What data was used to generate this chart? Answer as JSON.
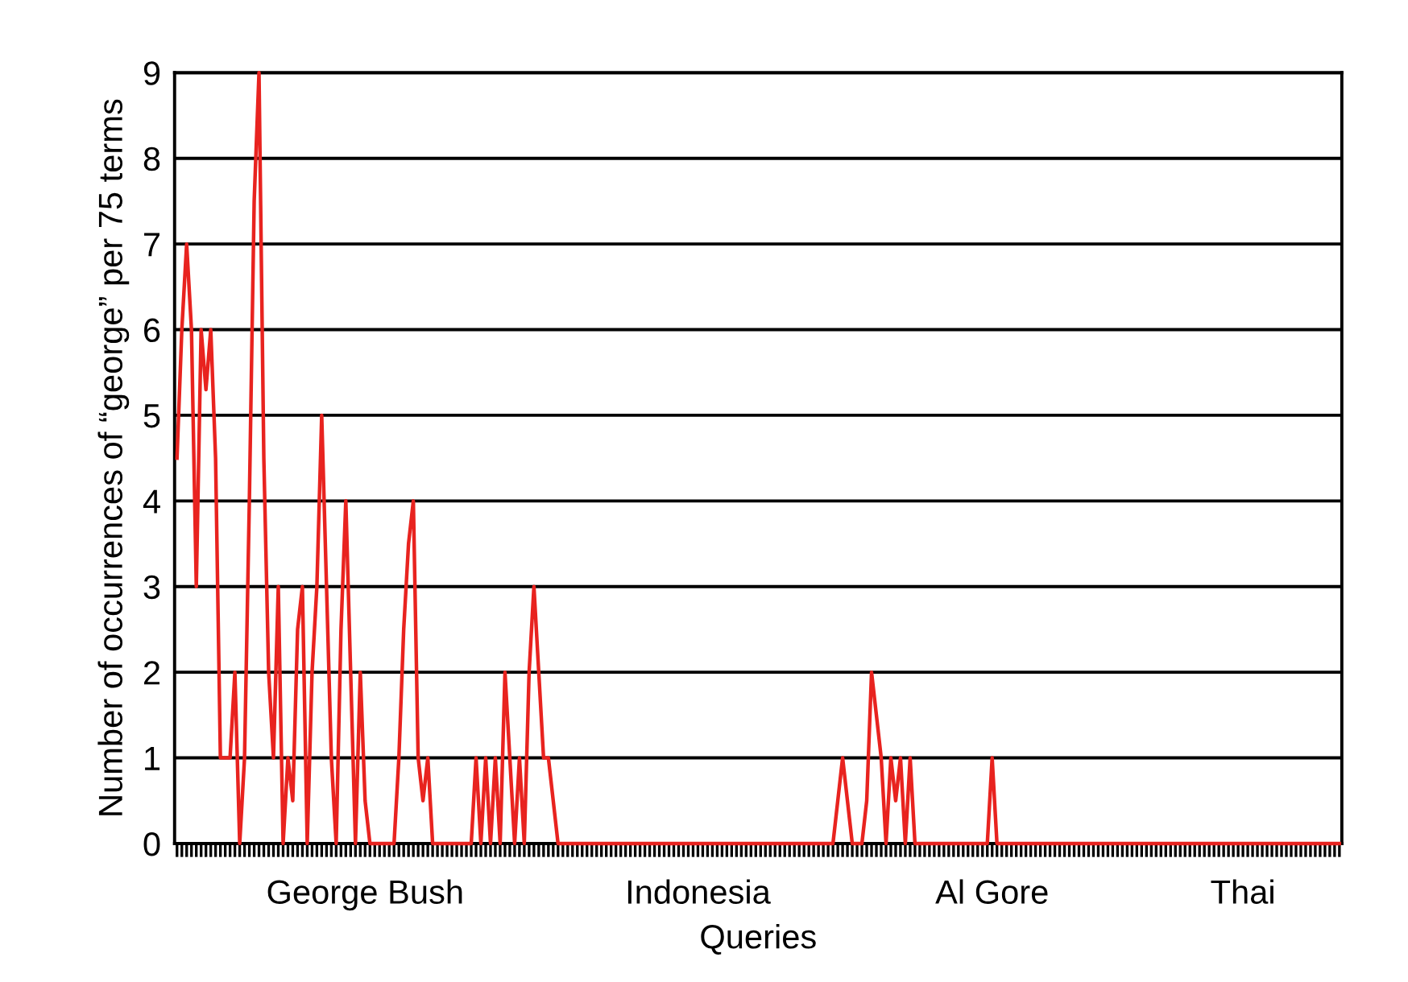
{
  "chart_data": {
    "type": "line",
    "xlabel": "Queries",
    "ylabel": "Number of occurrences of “george” per 75 terms",
    "categories": [
      null,
      null,
      null,
      null,
      null,
      null,
      null,
      null,
      null,
      null,
      null,
      null,
      null,
      null,
      null,
      null,
      null,
      null,
      null,
      null,
      null,
      null,
      null,
      null,
      null,
      null,
      null,
      null,
      null,
      null,
      null,
      null,
      null,
      null,
      null,
      null,
      null,
      null,
      null,
      "George Bush",
      null,
      null,
      null,
      null,
      null,
      null,
      null,
      null,
      null,
      null,
      null,
      null,
      null,
      null,
      null,
      null,
      null,
      null,
      null,
      null,
      null,
      null,
      null,
      null,
      null,
      null,
      null,
      null,
      null,
      null,
      null,
      null,
      null,
      null,
      null,
      null,
      null,
      null,
      null,
      null,
      null,
      null,
      null,
      null,
      null,
      null,
      null,
      null,
      null,
      null,
      null,
      null,
      null,
      null,
      null,
      null,
      null,
      null,
      null,
      null,
      null,
      null,
      null,
      null,
      null,
      null,
      null,
      null,
      "Indonesia",
      null,
      null,
      null,
      null,
      null,
      null,
      null,
      null,
      null,
      null,
      null,
      null,
      null,
      null,
      null,
      null,
      null,
      null,
      null,
      null,
      null,
      null,
      null,
      null,
      null,
      null,
      null,
      null,
      null,
      null,
      null,
      null,
      null,
      null,
      null,
      null,
      null,
      null,
      null,
      null,
      null,
      null,
      null,
      null,
      null,
      null,
      null,
      null,
      null,
      null,
      null,
      null,
      null,
      null,
      null,
      null,
      null,
      null,
      null,
      null,
      "Al Gore",
      null,
      null,
      null,
      null,
      null,
      null,
      null,
      null,
      null,
      null,
      null,
      null,
      null,
      null,
      null,
      null,
      null,
      null,
      null,
      null,
      null,
      null,
      null,
      null,
      null,
      null,
      null,
      null,
      null,
      null,
      null,
      null,
      null,
      null,
      null,
      null,
      null,
      null,
      null,
      null,
      null,
      null,
      null,
      null,
      null,
      null,
      null,
      null,
      null,
      null,
      null,
      "Thai",
      null,
      null,
      null,
      null,
      null,
      null,
      null,
      null,
      null,
      null,
      null,
      null,
      null,
      null,
      null,
      null,
      null,
      null,
      null,
      null
    ],
    "series": [
      {
        "color": "#e8231f",
        "values": [
          4.5,
          6,
          7,
          6,
          3,
          6,
          5.3,
          6,
          4.5,
          1,
          1,
          1,
          2,
          0,
          1,
          4,
          7.5,
          9,
          4.5,
          2,
          1,
          3,
          0,
          1,
          0.5,
          2.5,
          3,
          0,
          2,
          3,
          5,
          3,
          1,
          0,
          2.5,
          4,
          2,
          0,
          2,
          0.5,
          0,
          0,
          0,
          0,
          0,
          0,
          1,
          2.5,
          3.5,
          4,
          1,
          0.5,
          1,
          0,
          0,
          0,
          0,
          0,
          0,
          0,
          0,
          0,
          1,
          0,
          1,
          0,
          1,
          0,
          2,
          1,
          0,
          1,
          0,
          2,
          3,
          2,
          1,
          1,
          0.5,
          0,
          0,
          0,
          0,
          0,
          0,
          0,
          0,
          0,
          0,
          0,
          0,
          0,
          0,
          0,
          0,
          0,
          0,
          0,
          0,
          0,
          0,
          0,
          0,
          0,
          0,
          0,
          0,
          0,
          0,
          0,
          0,
          0,
          0,
          0,
          0,
          0,
          0,
          0,
          0,
          0,
          0,
          0,
          0,
          0,
          0,
          0,
          0,
          0,
          0,
          0,
          0,
          0,
          0,
          0,
          0,
          0,
          0,
          0.5,
          1,
          0.5,
          0,
          0,
          0,
          0.5,
          2,
          1.5,
          1,
          0,
          1,
          0.5,
          1,
          0,
          1,
          0,
          0,
          0,
          0,
          0,
          0,
          0,
          0,
          0,
          0,
          0,
          0,
          0,
          0,
          0,
          0,
          1,
          0,
          0,
          0,
          0,
          0,
          0,
          0,
          0,
          0,
          0,
          0,
          0,
          0,
          0,
          0,
          0,
          0,
          0,
          0,
          0,
          0,
          0,
          0,
          0,
          0,
          0,
          0,
          0,
          0,
          0,
          0,
          0,
          0,
          0,
          0,
          0,
          0,
          0,
          0,
          0,
          0,
          0,
          0,
          0,
          0,
          0,
          0,
          0,
          0,
          0,
          0,
          0,
          0,
          0,
          0,
          0,
          0,
          0,
          0,
          0,
          0,
          0,
          0,
          0,
          0,
          0,
          0,
          0,
          0,
          0,
          0,
          0
        ]
      }
    ],
    "ylim": [
      0,
      9
    ],
    "yticks": [
      0,
      1,
      2,
      3,
      4,
      5,
      6,
      7,
      8,
      9
    ],
    "grid": "y",
    "marker": "none",
    "line_style": "solid",
    "legend": false
  }
}
